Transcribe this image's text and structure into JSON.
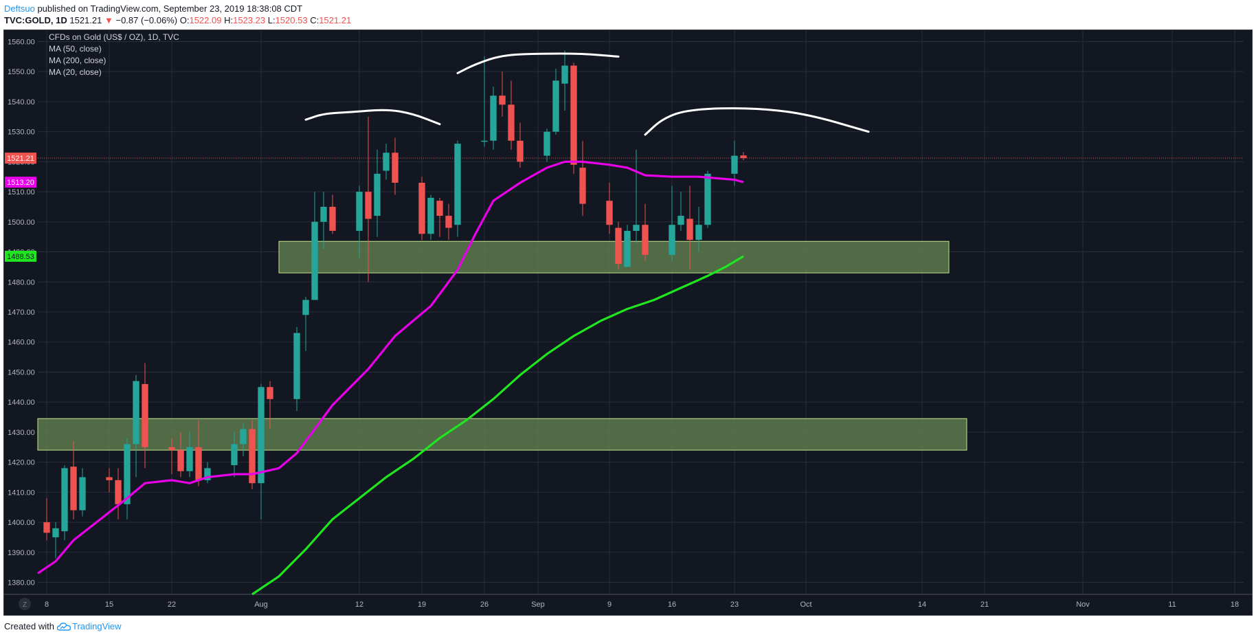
{
  "header": {
    "author": "Deftsuo",
    "published_text": "published on TradingView.com, September 23, 2019 18:38:08 CDT",
    "symbol": "TVC:GOLD, 1D",
    "last": "1521.21",
    "change_arrow": "▼",
    "change": "−0.87 (−0.06%)",
    "o_label": "O:",
    "o_value": "1522.09",
    "h_label": "H:",
    "h_value": "1523.23",
    "l_label": "L:",
    "l_value": "1520.53",
    "c_label": "C:",
    "c_value": "1521.21"
  },
  "footer": {
    "created_with": "Created with",
    "brand": "TradingView"
  },
  "colors": {
    "background": "#131722",
    "grid": "#2a2e39",
    "up": "#26a69a",
    "down": "#ef5350",
    "ma50": "#e800e8",
    "ma200": "#1fe61f",
    "ma20": "#e6e6e6",
    "zone_fill": "#5c7a4c",
    "zone_stroke": "#c6e58d",
    "annotation": "#ffffff"
  },
  "chart_data": {
    "type": "candlestick",
    "title": "CFDs on Gold (US$ / OZ), 1D, TVC",
    "legend": [
      "MA (50, close)",
      "MA (200, close)",
      "MA (20, close)"
    ],
    "legend_placement": "top-left",
    "y_range": [
      1376,
      1564
    ],
    "y_ticks": [
      1380,
      1390,
      1400,
      1410,
      1420,
      1430,
      1440,
      1450,
      1460,
      1470,
      1480,
      1490,
      1500,
      1510,
      1520,
      1530,
      1540,
      1550,
      1560
    ],
    "x_range": [
      "2019-07-07",
      "2019-11-19"
    ],
    "x_ticks": [
      {
        "date": "2019-07-08",
        "label": "8"
      },
      {
        "date": "2019-07-15",
        "label": "15"
      },
      {
        "date": "2019-07-22",
        "label": "22"
      },
      {
        "date": "2019-08-01",
        "label": "Aug"
      },
      {
        "date": "2019-08-12",
        "label": "12"
      },
      {
        "date": "2019-08-19",
        "label": "19"
      },
      {
        "date": "2019-08-26",
        "label": "26"
      },
      {
        "date": "2019-09-01",
        "label": "Sep"
      },
      {
        "date": "2019-09-09",
        "label": "9"
      },
      {
        "date": "2019-09-16",
        "label": "16"
      },
      {
        "date": "2019-09-23",
        "label": "23"
      },
      {
        "date": "2019-10-01",
        "label": "Oct"
      },
      {
        "date": "2019-10-14",
        "label": "14"
      },
      {
        "date": "2019-10-21",
        "label": "21"
      },
      {
        "date": "2019-11-01",
        "label": "Nov"
      },
      {
        "date": "2019-11-11",
        "label": "11"
      },
      {
        "date": "2019-11-18",
        "label": "18"
      }
    ],
    "grid": true,
    "candles": [
      {
        "d": "2019-07-08",
        "o": 1400.0,
        "h": 1408.0,
        "l": 1394.0,
        "c": 1396.5
      },
      {
        "d": "2019-07-09",
        "o": 1395.0,
        "h": 1400.0,
        "l": 1388.0,
        "c": 1398.0
      },
      {
        "d": "2019-07-10",
        "o": 1397.0,
        "h": 1419.0,
        "l": 1394.0,
        "c": 1418.0
      },
      {
        "d": "2019-07-11",
        "o": 1418.5,
        "h": 1427.0,
        "l": 1401.0,
        "c": 1404.0
      },
      {
        "d": "2019-07-12",
        "o": 1404.0,
        "h": 1418.0,
        "l": 1402.0,
        "c": 1415.0
      },
      {
        "d": "2019-07-15",
        "o": 1415.0,
        "h": 1418.0,
        "l": 1410.0,
        "c": 1414.0
      },
      {
        "d": "2019-07-16",
        "o": 1414.0,
        "h": 1418.0,
        "l": 1401.0,
        "c": 1406.0
      },
      {
        "d": "2019-07-17",
        "o": 1406.0,
        "h": 1428.0,
        "l": 1401.0,
        "c": 1426.0
      },
      {
        "d": "2019-07-18",
        "o": 1426.0,
        "h": 1449.0,
        "l": 1415.0,
        "c": 1447.0
      },
      {
        "d": "2019-07-19",
        "o": 1446.0,
        "h": 1453.0,
        "l": 1418.0,
        "c": 1425.0
      },
      {
        "d": "2019-07-22",
        "o": 1425.0,
        "h": 1428.0,
        "l": 1416.0,
        "c": 1424.0
      },
      {
        "d": "2019-07-23",
        "o": 1424.0,
        "h": 1430.0,
        "l": 1415.0,
        "c": 1417.0
      },
      {
        "d": "2019-07-24",
        "o": 1417.0,
        "h": 1430.0,
        "l": 1415.0,
        "c": 1425.0
      },
      {
        "d": "2019-07-25",
        "o": 1425.0,
        "h": 1434.0,
        "l": 1412.0,
        "c": 1414.0
      },
      {
        "d": "2019-07-26",
        "o": 1414.0,
        "h": 1420.0,
        "l": 1413.0,
        "c": 1418.0
      },
      {
        "d": "2019-07-29",
        "o": 1419.0,
        "h": 1430.0,
        "l": 1415.0,
        "c": 1426.0
      },
      {
        "d": "2019-07-30",
        "o": 1426.0,
        "h": 1433.0,
        "l": 1422.0,
        "c": 1431.0
      },
      {
        "d": "2019-07-31",
        "o": 1431.0,
        "h": 1434.0,
        "l": 1411.0,
        "c": 1413.0
      },
      {
        "d": "2019-08-01",
        "o": 1413.0,
        "h": 1446.0,
        "l": 1401.0,
        "c": 1445.0
      },
      {
        "d": "2019-08-02",
        "o": 1445.0,
        "h": 1447.0,
        "l": 1431.0,
        "c": 1441.0
      },
      {
        "d": "2019-08-05",
        "o": 1441.0,
        "h": 1465.0,
        "l": 1437.0,
        "c": 1463.0
      },
      {
        "d": "2019-08-06",
        "o": 1469.0,
        "h": 1475.0,
        "l": 1457.0,
        "c": 1474.0
      },
      {
        "d": "2019-08-07",
        "o": 1474.0,
        "h": 1510.0,
        "l": 1474.0,
        "c": 1500.0
      },
      {
        "d": "2019-08-08",
        "o": 1500.0,
        "h": 1510.0,
        "l": 1491.0,
        "c": 1505.0
      },
      {
        "d": "2019-08-09",
        "o": 1505.0,
        "h": 1509.0,
        "l": 1496.0,
        "c": 1497.0
      },
      {
        "d": "2019-08-12",
        "o": 1497.0,
        "h": 1512.0,
        "l": 1488.0,
        "c": 1510.0
      },
      {
        "d": "2019-08-13",
        "o": 1510.0,
        "h": 1535.0,
        "l": 1480.0,
        "c": 1501.0
      },
      {
        "d": "2019-08-14",
        "o": 1502.0,
        "h": 1524.0,
        "l": 1495.0,
        "c": 1516.0
      },
      {
        "d": "2019-08-15",
        "o": 1517.0,
        "h": 1526.0,
        "l": 1514.0,
        "c": 1523.0
      },
      {
        "d": "2019-08-16",
        "o": 1523.0,
        "h": 1528.0,
        "l": 1509.0,
        "c": 1513.0
      },
      {
        "d": "2019-08-19",
        "o": 1513.0,
        "h": 1515.0,
        "l": 1494.0,
        "c": 1496.0
      },
      {
        "d": "2019-08-20",
        "o": 1496.0,
        "h": 1509.0,
        "l": 1494.0,
        "c": 1508.0
      },
      {
        "d": "2019-08-21",
        "o": 1507.0,
        "h": 1508.0,
        "l": 1495.0,
        "c": 1502.0
      },
      {
        "d": "2019-08-22",
        "o": 1502.0,
        "h": 1506.0,
        "l": 1494.0,
        "c": 1498.0
      },
      {
        "d": "2019-08-23",
        "o": 1499.0,
        "h": 1527.0,
        "l": 1495.0,
        "c": 1526.0
      },
      {
        "d": "2019-08-26",
        "o": 1527.0,
        "h": 1555.0,
        "l": 1525.0,
        "c": 1527.0
      },
      {
        "d": "2019-08-27",
        "o": 1527.0,
        "h": 1545.0,
        "l": 1524.0,
        "c": 1542.0
      },
      {
        "d": "2019-08-28",
        "o": 1542.0,
        "h": 1550.0,
        "l": 1535.0,
        "c": 1539.0
      },
      {
        "d": "2019-08-29",
        "o": 1539.0,
        "h": 1547.0,
        "l": 1524.0,
        "c": 1527.0
      },
      {
        "d": "2019-08-30",
        "o": 1527.0,
        "h": 1533.0,
        "l": 1518.0,
        "c": 1520.0
      },
      {
        "d": "2019-09-02",
        "o": 1522.0,
        "h": 1531.0,
        "l": 1520.0,
        "c": 1530.0
      },
      {
        "d": "2019-09-03",
        "o": 1530.0,
        "h": 1551.0,
        "l": 1529.0,
        "c": 1547.0
      },
      {
        "d": "2019-09-04",
        "o": 1546.0,
        "h": 1557.0,
        "l": 1537.0,
        "c": 1552.0
      },
      {
        "d": "2019-09-05",
        "o": 1552.0,
        "h": 1553.0,
        "l": 1516.0,
        "c": 1519.0
      },
      {
        "d": "2019-09-06",
        "o": 1518.0,
        "h": 1527.0,
        "l": 1502.0,
        "c": 1506.0
      },
      {
        "d": "2019-09-09",
        "o": 1507.0,
        "h": 1513.0,
        "l": 1496.0,
        "c": 1499.0
      },
      {
        "d": "2019-09-10",
        "o": 1498.0,
        "h": 1500.0,
        "l": 1484.0,
        "c": 1486.0
      },
      {
        "d": "2019-09-11",
        "o": 1485.0,
        "h": 1499.0,
        "l": 1485.0,
        "c": 1497.0
      },
      {
        "d": "2019-09-12",
        "o": 1497.0,
        "h": 1524.0,
        "l": 1493.0,
        "c": 1499.0
      },
      {
        "d": "2019-09-13",
        "o": 1499.0,
        "h": 1506.0,
        "l": 1487.0,
        "c": 1489.0
      },
      {
        "d": "2019-09-16",
        "o": 1489.0,
        "h": 1512.0,
        "l": 1487.0,
        "c": 1499.0
      },
      {
        "d": "2019-09-17",
        "o": 1499.0,
        "h": 1510.0,
        "l": 1497.0,
        "c": 1502.0
      },
      {
        "d": "2019-09-18",
        "o": 1501.0,
        "h": 1512.0,
        "l": 1484.0,
        "c": 1494.0
      },
      {
        "d": "2019-09-19",
        "o": 1494.0,
        "h": 1505.0,
        "l": 1490.0,
        "c": 1499.0
      },
      {
        "d": "2019-09-20",
        "o": 1499.0,
        "h": 1517.0,
        "l": 1498.0,
        "c": 1516.0
      },
      {
        "d": "2019-09-23",
        "o": 1516.0,
        "h": 1527.0,
        "l": 1512.0,
        "c": 1522.0
      },
      {
        "d": "2019-09-24",
        "o": 1522.09,
        "h": 1523.23,
        "l": 1520.53,
        "c": 1521.21
      }
    ],
    "series": [
      {
        "name": "MA (50, close)",
        "points": [
          [
            "2019-07-07",
            1383.0
          ],
          [
            "2019-07-09",
            1387.0
          ],
          [
            "2019-07-11",
            1394.0
          ],
          [
            "2019-07-14",
            1401.0
          ],
          [
            "2019-07-17",
            1408.0
          ],
          [
            "2019-07-19",
            1413.0
          ],
          [
            "2019-07-22",
            1414.0
          ],
          [
            "2019-07-24",
            1413.0
          ],
          [
            "2019-07-26",
            1415.0
          ],
          [
            "2019-07-29",
            1416.0
          ],
          [
            "2019-07-31",
            1416.0
          ],
          [
            "2019-08-03",
            1418.0
          ],
          [
            "2019-08-05",
            1423.0
          ],
          [
            "2019-08-07",
            1431.0
          ],
          [
            "2019-08-09",
            1439.0
          ],
          [
            "2019-08-13",
            1451.0
          ],
          [
            "2019-08-16",
            1462.0
          ],
          [
            "2019-08-20",
            1472.0
          ],
          [
            "2019-08-23",
            1484.0
          ],
          [
            "2019-08-25",
            1496.0
          ],
          [
            "2019-08-27",
            1507.0
          ],
          [
            "2019-08-30",
            1513.0
          ],
          [
            "2019-09-02",
            1518.0
          ],
          [
            "2019-09-04",
            1520.0
          ],
          [
            "2019-09-06",
            1520.0
          ],
          [
            "2019-09-09",
            1519.0
          ],
          [
            "2019-09-11",
            1518.0
          ],
          [
            "2019-09-13",
            1515.5
          ],
          [
            "2019-09-16",
            1515.0
          ],
          [
            "2019-09-19",
            1515.0
          ],
          [
            "2019-09-23",
            1514.0
          ],
          [
            "2019-09-24",
            1513.2
          ]
        ]
      },
      {
        "name": "MA (200, close)",
        "points": [
          [
            "2019-07-31",
            1376.0
          ],
          [
            "2019-08-03",
            1382.0
          ],
          [
            "2019-08-06",
            1391.0
          ],
          [
            "2019-08-09",
            1401.0
          ],
          [
            "2019-08-12",
            1408.0
          ],
          [
            "2019-08-15",
            1415.0
          ],
          [
            "2019-08-18",
            1421.0
          ],
          [
            "2019-08-21",
            1428.0
          ],
          [
            "2019-08-24",
            1434.0
          ],
          [
            "2019-08-27",
            1441.0
          ],
          [
            "2019-08-30",
            1449.0
          ],
          [
            "2019-09-02",
            1456.0
          ],
          [
            "2019-09-05",
            1462.0
          ],
          [
            "2019-09-08",
            1467.0
          ],
          [
            "2019-09-11",
            1471.0
          ],
          [
            "2019-09-14",
            1474.0
          ],
          [
            "2019-09-17",
            1478.0
          ],
          [
            "2019-09-20",
            1482.0
          ],
          [
            "2019-09-22",
            1485.0
          ],
          [
            "2019-09-24",
            1488.53
          ]
        ]
      }
    ],
    "price_labels": [
      {
        "label": "1521.21",
        "value": 1521.21,
        "color": "#ef5350"
      },
      {
        "label": "1513.20",
        "value": 1513.2,
        "color": "#e800e8"
      },
      {
        "label": "1488.53",
        "value": 1488.53,
        "color": "#1fe61f"
      }
    ],
    "zones": [
      {
        "from": "2019-08-03",
        "to": "2019-10-17",
        "low": 1483.0,
        "high": 1493.5
      },
      {
        "from": "2019-07-07",
        "to": "2019-10-19",
        "low": 1424.0,
        "high": 1434.5
      }
    ],
    "annotation_curves": [
      [
        [
          "2019-08-06",
          1534.0
        ],
        [
          "2019-08-08",
          1536.0
        ],
        [
          "2019-08-11",
          1536.5
        ],
        [
          "2019-08-15",
          1537.5
        ],
        [
          "2019-08-18",
          1536.0
        ],
        [
          "2019-08-21",
          1532.5
        ]
      ],
      [
        [
          "2019-08-23",
          1549.5
        ],
        [
          "2019-08-25",
          1552.5
        ],
        [
          "2019-08-28",
          1555.5
        ],
        [
          "2019-09-01",
          1556.0
        ],
        [
          "2019-09-06",
          1556.0
        ],
        [
          "2019-09-10",
          1555.0
        ]
      ],
      [
        [
          "2019-09-13",
          1529.0
        ],
        [
          "2019-09-15",
          1534.5
        ],
        [
          "2019-09-18",
          1537.5
        ],
        [
          "2019-09-25",
          1538.0
        ],
        [
          "2019-10-01",
          1536.0
        ],
        [
          "2019-10-08",
          1530.0
        ]
      ]
    ]
  }
}
